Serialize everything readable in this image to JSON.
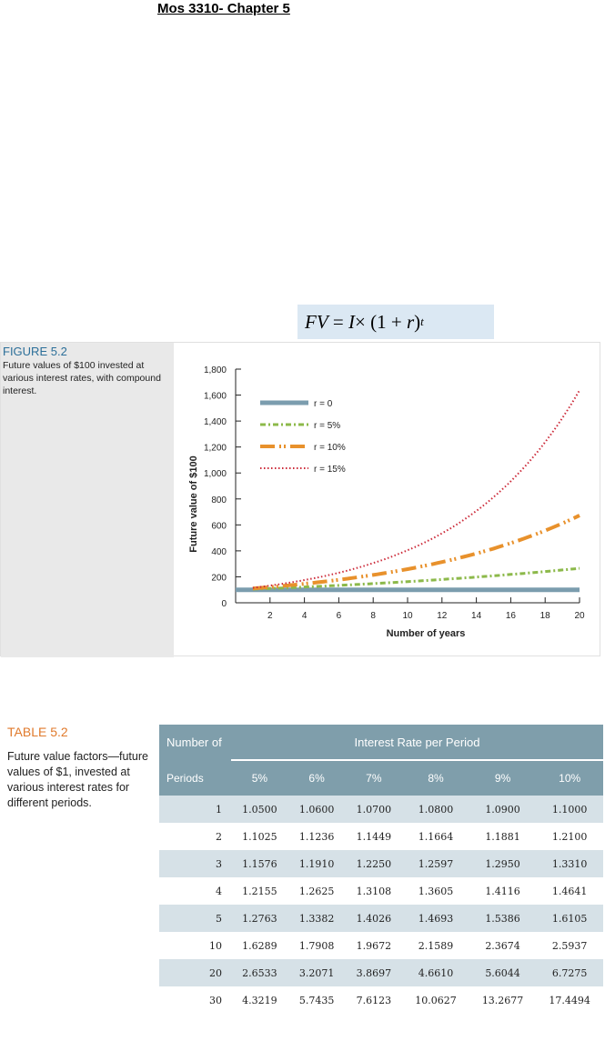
{
  "page_title": "Mos 3310- Chapter 5",
  "formula": {
    "fv": "FV",
    "eq": "=",
    "i": "I",
    "times": "×",
    "open": "(1 +",
    "r": "r",
    "close": ")",
    "t": "t"
  },
  "figure": {
    "label": "FIGURE 5.2",
    "caption": "Future values of $100 invested at various interest rates, with compound interest.",
    "ylabel": "Future value of $100",
    "xlabel": "Number of years",
    "yticks": [
      "0",
      "200",
      "400",
      "600",
      "800",
      "1,000",
      "1,200",
      "1,400",
      "1,600",
      "1,800"
    ],
    "xticks": [
      "2",
      "4",
      "6",
      "8",
      "10",
      "12",
      "14",
      "16",
      "18",
      "20"
    ],
    "legend": [
      "r = 0",
      "r = 5%",
      "r = 10%",
      "r = 15%"
    ]
  },
  "chart_data": {
    "type": "line",
    "title": "",
    "xlabel": "Number of years",
    "ylabel": "Future value of $100",
    "xlim": [
      0,
      20
    ],
    "ylim": [
      0,
      1800
    ],
    "grid": false,
    "legend_position": "top-left",
    "series": [
      {
        "name": "r = 0",
        "rate": 0,
        "color": "#7b9dae"
      },
      {
        "name": "r = 5%",
        "rate": 0.05,
        "color": "#8cb94a"
      },
      {
        "name": "r = 10%",
        "rate": 0.1,
        "color": "#e8912c"
      },
      {
        "name": "r = 15%",
        "rate": 0.15,
        "color": "#cc2b3a"
      }
    ],
    "x": [
      0,
      2,
      4,
      6,
      8,
      10,
      12,
      14,
      16,
      18,
      20
    ]
  },
  "table": {
    "label": "TABLE 5.2",
    "caption": "Future value factors—future values of $1, invested at various interest rates for different periods.",
    "header_periods_1": "Number of",
    "header_periods_2": "Periods",
    "header_rate": "Interest Rate per Period",
    "columns": [
      "5%",
      "6%",
      "7%",
      "8%",
      "9%",
      "10%"
    ],
    "rows": [
      {
        "period": "1",
        "values": [
          "1.0500",
          "1.0600",
          "1.0700",
          "1.0800",
          "1.0900",
          "1.1000"
        ]
      },
      {
        "period": "2",
        "values": [
          "1.1025",
          "1.1236",
          "1.1449",
          "1.1664",
          "1.1881",
          "1.2100"
        ]
      },
      {
        "period": "3",
        "values": [
          "1.1576",
          "1.1910",
          "1.2250",
          "1.2597",
          "1.2950",
          "1.3310"
        ]
      },
      {
        "period": "4",
        "values": [
          "1.2155",
          "1.2625",
          "1.3108",
          "1.3605",
          "1.4116",
          "1.4641"
        ]
      },
      {
        "period": "5",
        "values": [
          "1.2763",
          "1.3382",
          "1.4026",
          "1.4693",
          "1.5386",
          "1.6105"
        ]
      },
      {
        "period": "10",
        "values": [
          "1.6289",
          "1.7908",
          "1.9672",
          "2.1589",
          "2.3674",
          "2.5937"
        ]
      },
      {
        "period": "20",
        "values": [
          "2.6533",
          "3.2071",
          "3.8697",
          "4.6610",
          "5.6044",
          "6.7275"
        ]
      },
      {
        "period": "30",
        "values": [
          "4.3219",
          "5.7435",
          "7.6123",
          "10.0627",
          "13.2677",
          "17.4494"
        ]
      }
    ]
  }
}
